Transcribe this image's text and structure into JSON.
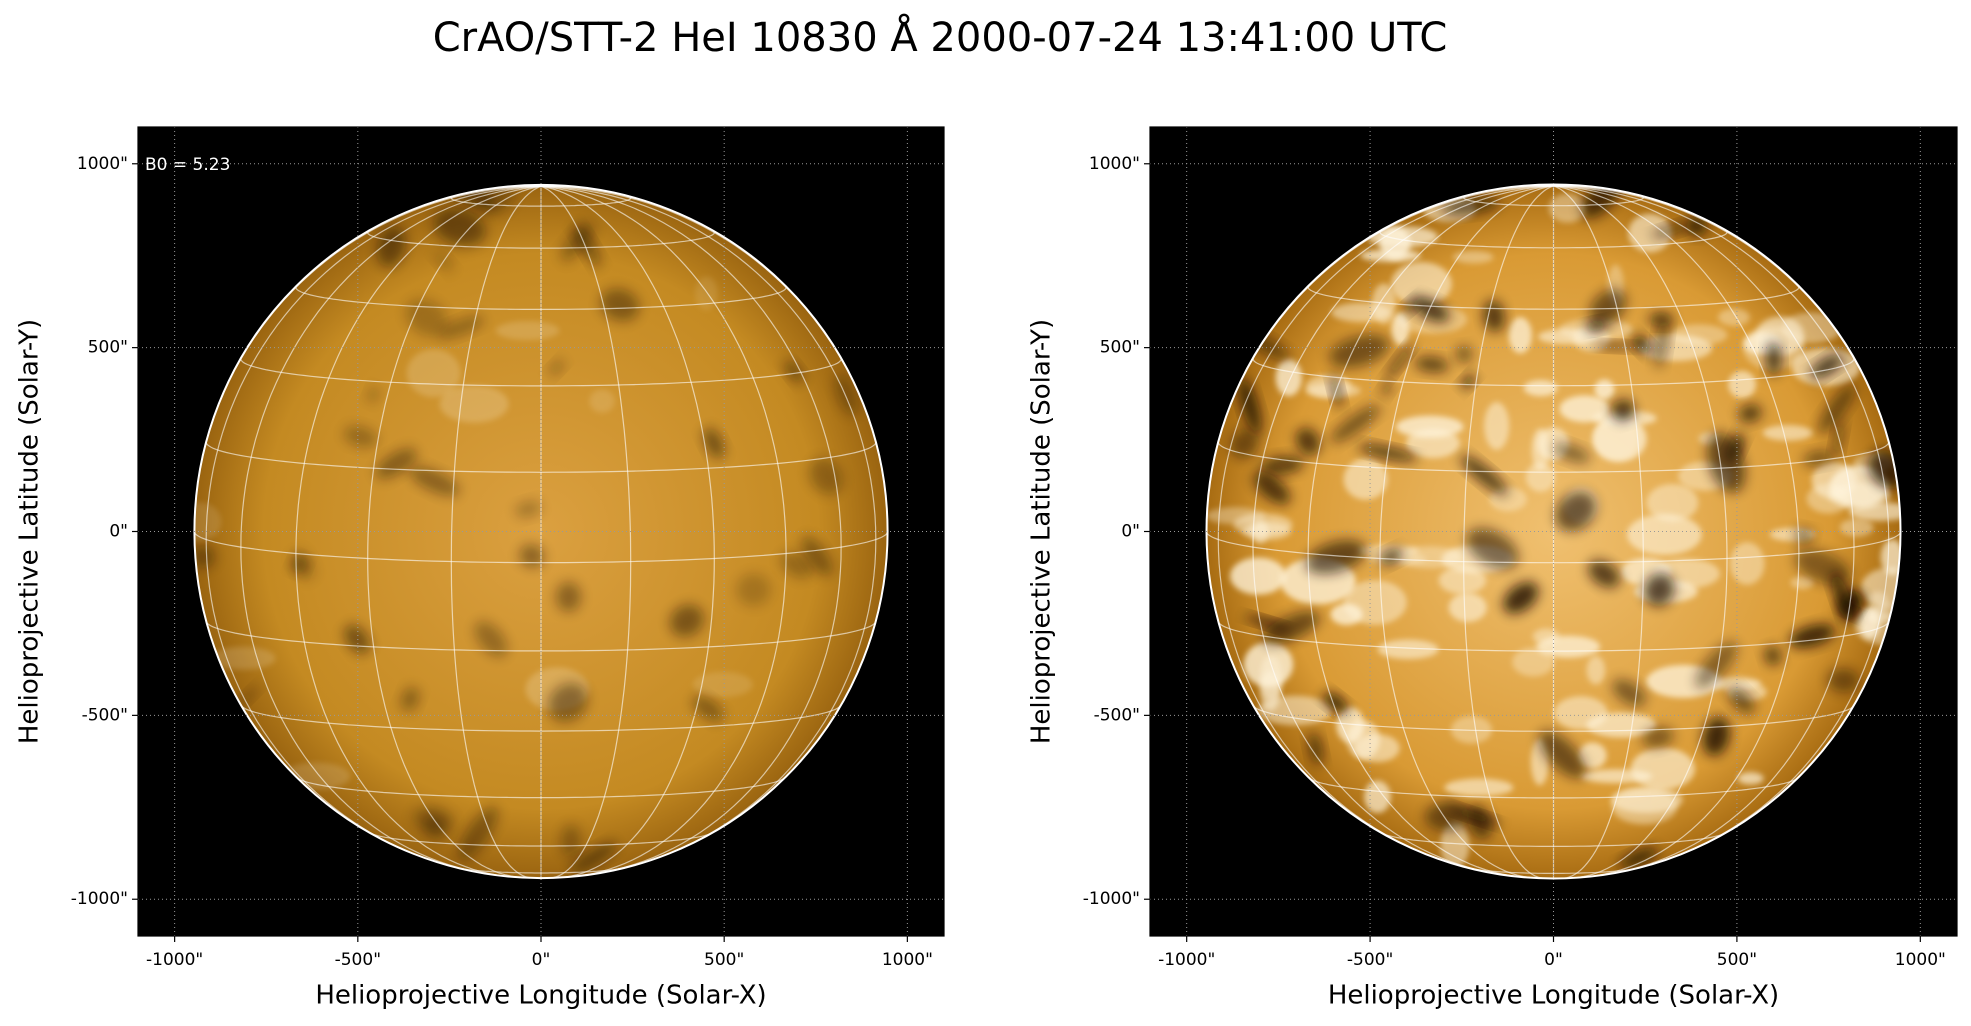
{
  "title": "CrAO/STT-2 HeI 10830 Å 2000-07-24 13:41:00 UTC",
  "chart_data": [
    {
      "type": "image",
      "annotation": "B0 = 5.23",
      "xlabel": "Helioprojective Longitude (Solar-X)",
      "ylabel": "Helioprojective Latitude (Solar-Y)",
      "xlim": [
        -1100,
        1100
      ],
      "ylim": [
        -1100,
        1100
      ],
      "xticks": [
        {
          "value": -1000,
          "label": "-1000\""
        },
        {
          "value": -500,
          "label": "-500\""
        },
        {
          "value": 0,
          "label": "0\""
        },
        {
          "value": 500,
          "label": "500\""
        },
        {
          "value": 1000,
          "label": "1000\""
        }
      ],
      "yticks": [
        {
          "value": -1000,
          "label": "-1000\""
        },
        {
          "value": -500,
          "label": "-500\""
        },
        {
          "value": 0,
          "label": "0\""
        },
        {
          "value": 500,
          "label": "500\""
        },
        {
          "value": 1000,
          "label": "1000\""
        }
      ],
      "grid": true
    },
    {
      "type": "image",
      "xlabel": "Helioprojective Longitude (Solar-X)",
      "ylabel": "Helioprojective Latitude (Solar-Y)",
      "xlim": [
        -1100,
        1100
      ],
      "ylim": [
        -1100,
        1100
      ],
      "xticks": [
        {
          "value": -1000,
          "label": "-1000\""
        },
        {
          "value": -500,
          "label": "-500\""
        },
        {
          "value": 0,
          "label": "0\""
        },
        {
          "value": 500,
          "label": "500\""
        },
        {
          "value": 1000,
          "label": "1000\""
        }
      ],
      "yticks": [
        {
          "value": -1000,
          "label": "-1000\""
        },
        {
          "value": -500,
          "label": "-500\""
        },
        {
          "value": 0,
          "label": "0\""
        },
        {
          "value": 500,
          "label": "500\""
        },
        {
          "value": 1000,
          "label": "1000\""
        }
      ],
      "grid": true
    }
  ]
}
